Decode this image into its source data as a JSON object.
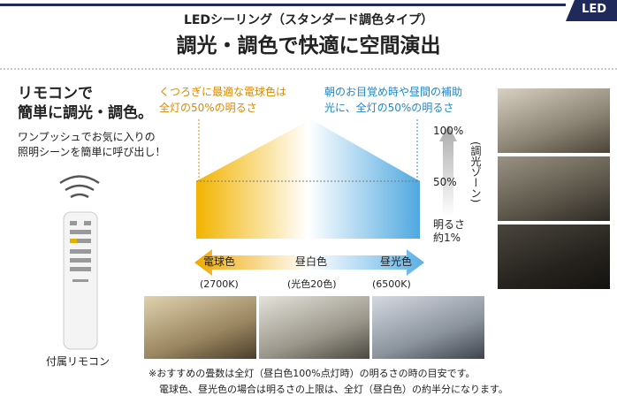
{
  "badge": "LED",
  "header": {
    "subtitle": "LEDシーリング（スタンダード調色タイプ）",
    "title": "調光・調色で快適に空間演出"
  },
  "left": {
    "heading": [
      "リモコンで",
      "簡単に調光・調色。"
    ],
    "description": [
      "ワンプッシュでお気に入りの",
      "照明シーンを簡単に呼び出し！"
    ],
    "remote_caption": "付属リモコン"
  },
  "notes": {
    "warm": [
      "くつろぎに最適な電球色は",
      "全灯の50%の明るさ"
    ],
    "cool": [
      "朝のお目覚め時や昼間の補助",
      "光に、全灯の50%の明るさ"
    ]
  },
  "scale": {
    "top": "100%",
    "middle": "50%",
    "bottom": [
      "明るさ",
      "約1%"
    ],
    "zone": "(調光ゾーン)"
  },
  "colors": {
    "labels": [
      "電球色",
      "昼白色",
      "昼光色"
    ],
    "temperatures": [
      "(2700K)",
      "(光色20色)",
      "(6500K)"
    ]
  },
  "footnotes": [
    "※おすすめの畳数は全灯（昼白色100%点灯時）の明るさの時の目安です。",
    "電球色、昼光色の場合は明るさの上限は、全灯（昼白色）の約半分になります。"
  ]
}
